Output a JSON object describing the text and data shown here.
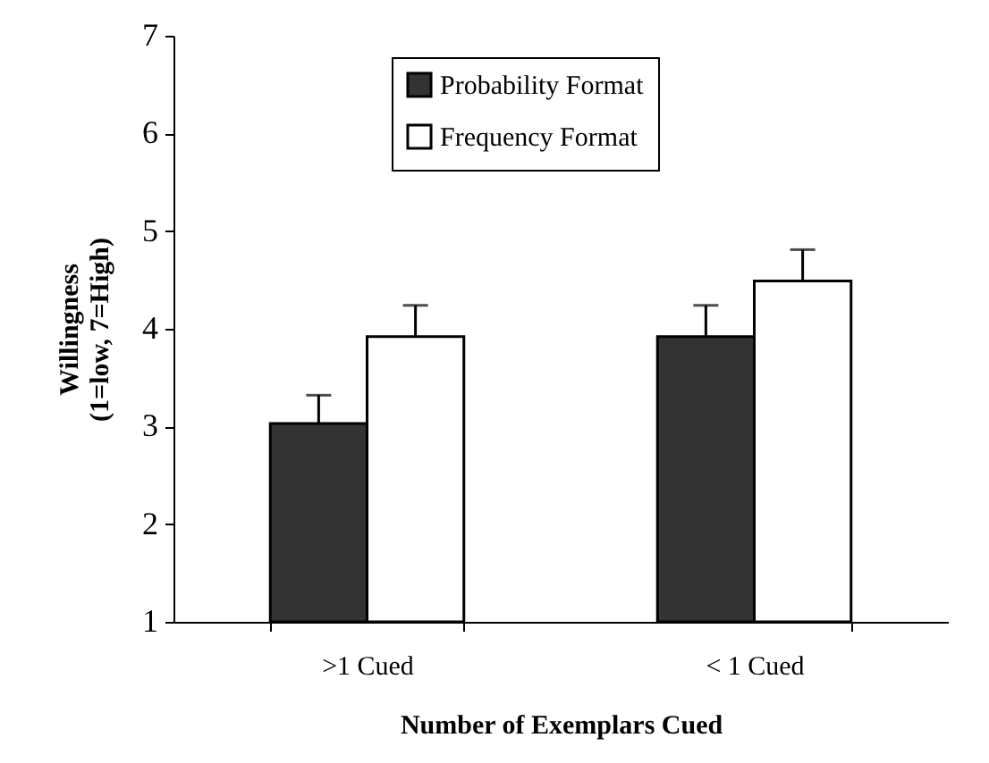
{
  "chart_data": {
    "type": "bar",
    "xlabel": "Number of Exemplars Cued",
    "ylabel": "Willingness\n(1=low, 7=High)",
    "categories": [
      ">1 Cued",
      "< 1 Cued"
    ],
    "series": [
      {
        "name": "Probability Format",
        "color": "#333333",
        "values": [
          3.03,
          3.92
        ],
        "errors": [
          [
            3.03,
            3.32
          ],
          [
            3.92,
            4.24
          ]
        ]
      },
      {
        "name": "Frequency Format",
        "color": "#ffffff",
        "values": [
          3.92,
          4.49
        ],
        "errors": [
          [
            3.92,
            4.24
          ],
          [
            4.49,
            4.81
          ]
        ]
      }
    ],
    "ylim": [
      1,
      7
    ],
    "yticks": [
      1,
      2,
      3,
      4,
      5,
      6,
      7
    ],
    "grid": false,
    "legend": "top"
  }
}
